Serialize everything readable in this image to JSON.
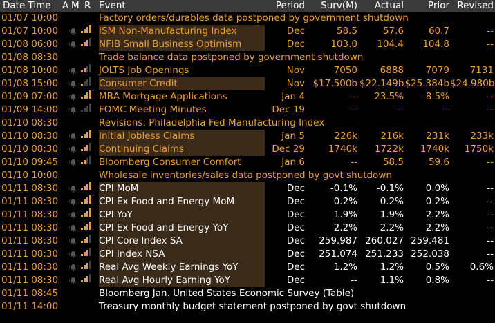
{
  "header": {
    "date_time": "Date Time",
    "a": "A",
    "m": "M",
    "r": "R",
    "event": "Event",
    "period": "Period",
    "survey": "Surv(M)",
    "actual": "Actual",
    "prior": "Prior",
    "revised": "Revised"
  },
  "rows": [
    {
      "dt": "01/07 10:00",
      "event": "Factory orders/durables data postponed by government shutdown",
      "period": "",
      "surv": "",
      "act": "",
      "prior": "",
      "rev": "",
      "rel": 0,
      "bell": false,
      "hl": false,
      "white": false
    },
    {
      "dt": "01/07 10:00",
      "event": "ISM Non-Manufacturing Index",
      "period": "Dec",
      "surv": "58.5",
      "act": "57.6",
      "prior": "60.7",
      "rev": "--",
      "rel": 4,
      "bell": true,
      "hl": true,
      "white": false
    },
    {
      "dt": "01/08 06:00",
      "event": "NFIB Small Business Optimism",
      "period": "Dec",
      "surv": "103.0",
      "act": "104.4",
      "prior": "104.8",
      "rev": "--",
      "rel": 3,
      "bell": true,
      "hl": true,
      "white": false
    },
    {
      "dt": "01/08 08:30",
      "event": "Trade balance data postponed by government shutdown",
      "period": "",
      "surv": "",
      "act": "",
      "prior": "",
      "rev": "",
      "rel": 0,
      "bell": false,
      "hl": false,
      "white": false
    },
    {
      "dt": "01/08 10:00",
      "event": "JOLTS Job Openings",
      "period": "Nov",
      "surv": "7050",
      "act": "6888",
      "prior": "7079",
      "rev": "7131",
      "rel": 2,
      "bell": true,
      "hl": false,
      "white": false
    },
    {
      "dt": "01/08 15:00",
      "event": "Consumer Credit",
      "period": "Nov",
      "surv": "$17.500b",
      "act": "$22.149b",
      "prior": "$25.384b",
      "rev": "$24.980b",
      "rel": 1,
      "bell": true,
      "hl": true,
      "white": false
    },
    {
      "dt": "01/09 07:00",
      "event": "MBA Mortgage Applications",
      "period": "Jan 4",
      "surv": "--",
      "act": "23.5%",
      "prior": "-8.5%",
      "rev": "--",
      "rel": 4,
      "bell": true,
      "hl": false,
      "white": false
    },
    {
      "dt": "01/09 14:00",
      "event": "FOMC Meeting Minutes",
      "period": "Dec 19",
      "surv": "--",
      "act": "--",
      "prior": "--",
      "rev": "--",
      "rel": 0,
      "bell": true,
      "hl": false,
      "white": false
    },
    {
      "dt": "01/10 08:30",
      "event": "Revisions: Philadelphia Fed Manufacturing Index",
      "period": "",
      "surv": "",
      "act": "",
      "prior": "",
      "rev": "",
      "rel": 0,
      "bell": false,
      "hl": false,
      "white": false
    },
    {
      "dt": "01/10 08:30",
      "event": "Initial Jobless Claims",
      "period": "Jan 5",
      "surv": "226k",
      "act": "216k",
      "prior": "231k",
      "rev": "233k",
      "rel": 4,
      "bell": true,
      "hl": true,
      "white": false
    },
    {
      "dt": "01/10 08:30",
      "event": "Continuing Claims",
      "period": "Dec 29",
      "surv": "1740k",
      "act": "1722k",
      "prior": "1740k",
      "rev": "1750k",
      "rel": 3,
      "bell": true,
      "hl": true,
      "white": false
    },
    {
      "dt": "01/10 09:45",
      "event": "Bloomberg Consumer Comfort",
      "period": "Jan 6",
      "surv": "--",
      "act": "58.5",
      "prior": "59.6",
      "rev": "--",
      "rel": 2,
      "bell": true,
      "hl": false,
      "white": false
    },
    {
      "dt": "01/10 10:00",
      "event": "Wholesale inventories/sales data postponed by govt shutdown",
      "period": "",
      "surv": "",
      "act": "",
      "prior": "",
      "rev": "",
      "rel": 0,
      "bell": false,
      "hl": false,
      "white": false
    },
    {
      "dt": "01/11 08:30",
      "event": "CPI MoM",
      "period": "Dec",
      "surv": "-0.1%",
      "act": "-0.1%",
      "prior": "0.0%",
      "rev": "--",
      "rel": 4,
      "bell": true,
      "hl": true,
      "white": true
    },
    {
      "dt": "01/11 08:30",
      "event": "CPI Ex Food and Energy MoM",
      "period": "Dec",
      "surv": "0.2%",
      "act": "0.2%",
      "prior": "0.2%",
      "rev": "--",
      "rel": 4,
      "bell": true,
      "hl": true,
      "white": true
    },
    {
      "dt": "01/11 08:30",
      "event": "CPI YoY",
      "period": "Dec",
      "surv": "1.9%",
      "act": "1.9%",
      "prior": "2.2%",
      "rev": "--",
      "rel": 4,
      "bell": true,
      "hl": true,
      "white": true
    },
    {
      "dt": "01/11 08:30",
      "event": "CPI Ex Food and Energy YoY",
      "period": "Dec",
      "surv": "2.2%",
      "act": "2.2%",
      "prior": "2.2%",
      "rev": "--",
      "rel": 4,
      "bell": true,
      "hl": true,
      "white": true
    },
    {
      "dt": "01/11 08:30",
      "event": "CPI Core Index SA",
      "period": "Dec",
      "surv": "259.987",
      "act": "260.027",
      "prior": "259.481",
      "rev": "--",
      "rel": 3,
      "bell": true,
      "hl": true,
      "white": true
    },
    {
      "dt": "01/11 08:30",
      "event": "CPI Index NSA",
      "period": "Dec",
      "surv": "251.074",
      "act": "251.233",
      "prior": "252.038",
      "rev": "--",
      "rel": 3,
      "bell": true,
      "hl": true,
      "white": true
    },
    {
      "dt": "01/11 08:30",
      "event": "Real Avg Weekly Earnings YoY",
      "period": "Dec",
      "surv": "1.2%",
      "act": "1.2%",
      "prior": "0.5%",
      "rev": "0.6%",
      "rel": 3,
      "bell": true,
      "hl": true,
      "white": true
    },
    {
      "dt": "01/11 08:30",
      "event": "Real Avg Hourly Earning YoY",
      "period": "Dec",
      "surv": "--",
      "act": "1.1%",
      "prior": "0.8%",
      "rev": "--",
      "rel": 3,
      "bell": true,
      "hl": true,
      "white": true
    },
    {
      "dt": "01/11 08:45",
      "event": "Bloomberg Jan. United States Economic Survey (Table)",
      "period": "",
      "surv": "",
      "act": "",
      "prior": "",
      "rev": "",
      "rel": 0,
      "bell": false,
      "hl": false,
      "white": true
    },
    {
      "dt": "01/11 14:00",
      "event": "Treasury monthly budget statement postponed by govt shutdown",
      "period": "",
      "surv": "",
      "act": "",
      "prior": "",
      "rev": "",
      "rel": 0,
      "bell": false,
      "hl": false,
      "white": true
    }
  ],
  "colors": {
    "accent": "#f0a020",
    "header_bg": "#3a3a3a",
    "highlight_bg": "#3a2a1a",
    "bg": "#000000"
  },
  "icons": {
    "alarm": "bell-icon",
    "relevance": "relevance-bars-icon"
  }
}
